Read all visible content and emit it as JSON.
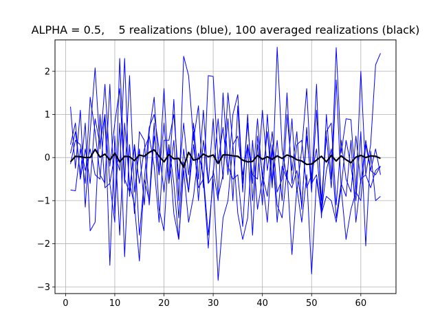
{
  "chart_data": {
    "type": "line",
    "title": "ALPHA = 0.5,    5 realizations (blue), 100 averaged realizations (black)",
    "xlabel": "",
    "ylabel": "",
    "xlim": [
      1,
      64
    ],
    "ylim": [
      -3,
      2.5
    ],
    "x_ticks": [
      0,
      10,
      20,
      30,
      40,
      50,
      60
    ],
    "y_ticks": [
      -3,
      -2,
      -1,
      0,
      1,
      2
    ],
    "grid": true,
    "legend": "none",
    "colors": {
      "realization": "#0000ff",
      "average": "#000000",
      "grid": "#b0b0b0"
    },
    "x": [
      1,
      2,
      3,
      4,
      5,
      6,
      7,
      8,
      9,
      10,
      11,
      12,
      13,
      14,
      15,
      16,
      17,
      18,
      19,
      20,
      21,
      22,
      23,
      24,
      25,
      26,
      27,
      28,
      29,
      30,
      31,
      32,
      33,
      34,
      35,
      36,
      37,
      38,
      39,
      40,
      41,
      42,
      43,
      44,
      45,
      46,
      47,
      48,
      49,
      50,
      51,
      52,
      53,
      54,
      55,
      56,
      57,
      58,
      59,
      60,
      61,
      62,
      63,
      64
    ],
    "series": [
      {
        "values": [
          1.18,
          -0.25,
          1.1,
          -1.15,
          0.6,
          2.08,
          0.2,
          1.7,
          -0.2,
          0.8,
          1.6,
          -0.6,
          1.9,
          -0.8,
          0.2,
          -1.1,
          0.6,
          1.4,
          -0.4,
          0.8,
          -0.5,
          1.35,
          -1.0,
          2.35,
          1.9,
          0.4,
          1.2,
          -0.7,
          1.9,
          1.88,
          -0.1,
          0.7,
          -0.4,
          1.0,
          1.46,
          -0.6,
          0.8,
          -0.6,
          0.9,
          -0.5,
          0.6,
          -0.7,
          2.56,
          0.2,
          -0.5,
          0.9,
          -0.8,
          0.2,
          1.6,
          -0.6,
          1.7,
          -1.4,
          1.0,
          -0.5,
          2.55,
          0.1,
          0.9,
          0.88,
          -0.8,
          2.0,
          -0.4,
          0.3,
          2.15,
          2.42
        ]
      },
      {
        "values": [
          -0.75,
          -0.77,
          0.2,
          -0.6,
          1.4,
          0.6,
          -0.4,
          -0.6,
          1.7,
          -1.3,
          0.8,
          -2.3,
          0.3,
          -1.3,
          0.6,
          0.4,
          -1.1,
          0.5,
          -0.4,
          1.6,
          -0.6,
          0.4,
          -1.4,
          0.2,
          -0.8,
          0.8,
          -0.5,
          1.1,
          -0.6,
          0.9,
          -0.9,
          -0.4,
          0.9,
          -1.0,
          1.2,
          -0.8,
          1.0,
          -1.0,
          0.3,
          -1.1,
          1.0,
          -0.6,
          0.4,
          -1.0,
          1.0,
          -0.3,
          0.6,
          -1.2,
          0.7,
          -0.8,
          1.1,
          -1.0,
          0.5,
          -0.7,
          1.8,
          -0.7,
          0.4,
          -0.2,
          -1.0,
          0.6,
          -2.05,
          0.15,
          -1.0,
          -0.9
        ]
      },
      {
        "values": [
          0.3,
          0.8,
          -0.5,
          0.2,
          -0.6,
          0.9,
          0.3,
          1.0,
          -0.6,
          0.1,
          -0.3,
          2.3,
          -0.9,
          0.3,
          -0.6,
          0.2,
          0.5,
          -0.2,
          -1.5,
          0.4,
          0.4,
          1.0,
          -0.5,
          0.8,
          -0.4,
          0.6,
          -1.0,
          0.4,
          -0.6,
          -0.4,
          0.9,
          -0.5,
          1.5,
          0.3,
          0.5,
          -0.4,
          0.3,
          -0.4,
          -0.5,
          1.1,
          -0.3,
          0.6,
          -0.8,
          -0.5,
          1.5,
          -0.6,
          0.3,
          0.4,
          -0.7,
          -0.4,
          0.2,
          -1.2,
          0.6,
          0.8,
          -1.1,
          0.4,
          -0.5,
          -0.8,
          0.5,
          -0.6,
          0.4,
          -0.3,
          0.2,
          -0.4
        ]
      },
      {
        "values": [
          0.1,
          0.6,
          -0.4,
          0.8,
          -1.7,
          -1.5,
          1.0,
          -0.7,
          -0.6,
          -1.5,
          2.3,
          -0.5,
          -0.8,
          0.3,
          -1.8,
          -0.5,
          -1.0,
          0.8,
          -1.2,
          -1.7,
          0.3,
          -0.6,
          -1.9,
          -0.1,
          -0.8,
          0.3,
          -0.7,
          -0.5,
          -2.1,
          -0.3,
          -1.0,
          1.5,
          -0.2,
          -0.5,
          -0.4,
          -1.6,
          0.3,
          -1.8,
          0.5,
          -0.4,
          -0.9,
          0.3,
          -1.5,
          -0.2,
          -0.5,
          -0.7,
          -0.3,
          -1.1,
          0.5,
          -0.6,
          -0.4,
          -1.3,
          -0.3,
          0.2,
          -1.4,
          -0.6,
          -0.9,
          0.4,
          -1.5,
          -0.5,
          -0.4,
          -0.7,
          -0.3,
          -0.2
        ]
      },
      {
        "values": [
          -0.15,
          0.4,
          0.3,
          -0.3,
          0.2,
          -0.4,
          -0.5,
          1.0,
          -2.5,
          0.5,
          -1.8,
          0.8,
          -0.6,
          -1.1,
          -2.4,
          -0.5,
          0.7,
          1.0,
          0.2,
          -0.8,
          0.3,
          -1.3,
          -1.9,
          -0.3,
          -1.5,
          -0.9,
          0.1,
          -0.4,
          -1.8,
          -0.5,
          -2.85,
          -1.4,
          -1.0,
          0.3,
          -1.3,
          -1.9,
          -1.4,
          0.4,
          -1.2,
          -0.5,
          -1.5,
          0.2,
          -1.1,
          -1.4,
          -0.3,
          -2.25,
          -0.7,
          -1.5,
          -0.4,
          -2.7,
          -0.5,
          -1.3,
          -0.9,
          -1.0,
          -1.5,
          -0.7,
          -1.9,
          -1.2,
          -0.8,
          -1.0,
          0.3,
          -0.3,
          -0.4,
          -0.2
        ]
      },
      {
        "values": [
          -0.1,
          0.03,
          0.02,
          0.0,
          0.0,
          0.19,
          0.01,
          0.08,
          -0.06,
          0.1,
          -0.1,
          0.03,
          0.02,
          -0.07,
          0.06,
          0.03,
          0.12,
          0.18,
          0.03,
          -0.1,
          0.07,
          -0.03,
          -0.02,
          -0.22,
          0.12,
          -0.06,
          -0.03,
          0.08,
          0.02,
          0.06,
          -0.14,
          0.06,
          0.06,
          0.04,
          0.03,
          -0.06,
          -0.1,
          -0.09,
          0.05,
          -0.04,
          0.02,
          -0.04,
          0.04,
          -0.02,
          0.06,
          0.02,
          -0.05,
          -0.08,
          -0.16,
          -0.15,
          -0.06,
          0.03,
          -0.1,
          0.05,
          -0.08,
          0.04,
          -0.05,
          -0.12,
          0.01,
          0.05,
          0.0,
          0.04,
          0.03,
          -0.02
        ]
      }
    ]
  }
}
